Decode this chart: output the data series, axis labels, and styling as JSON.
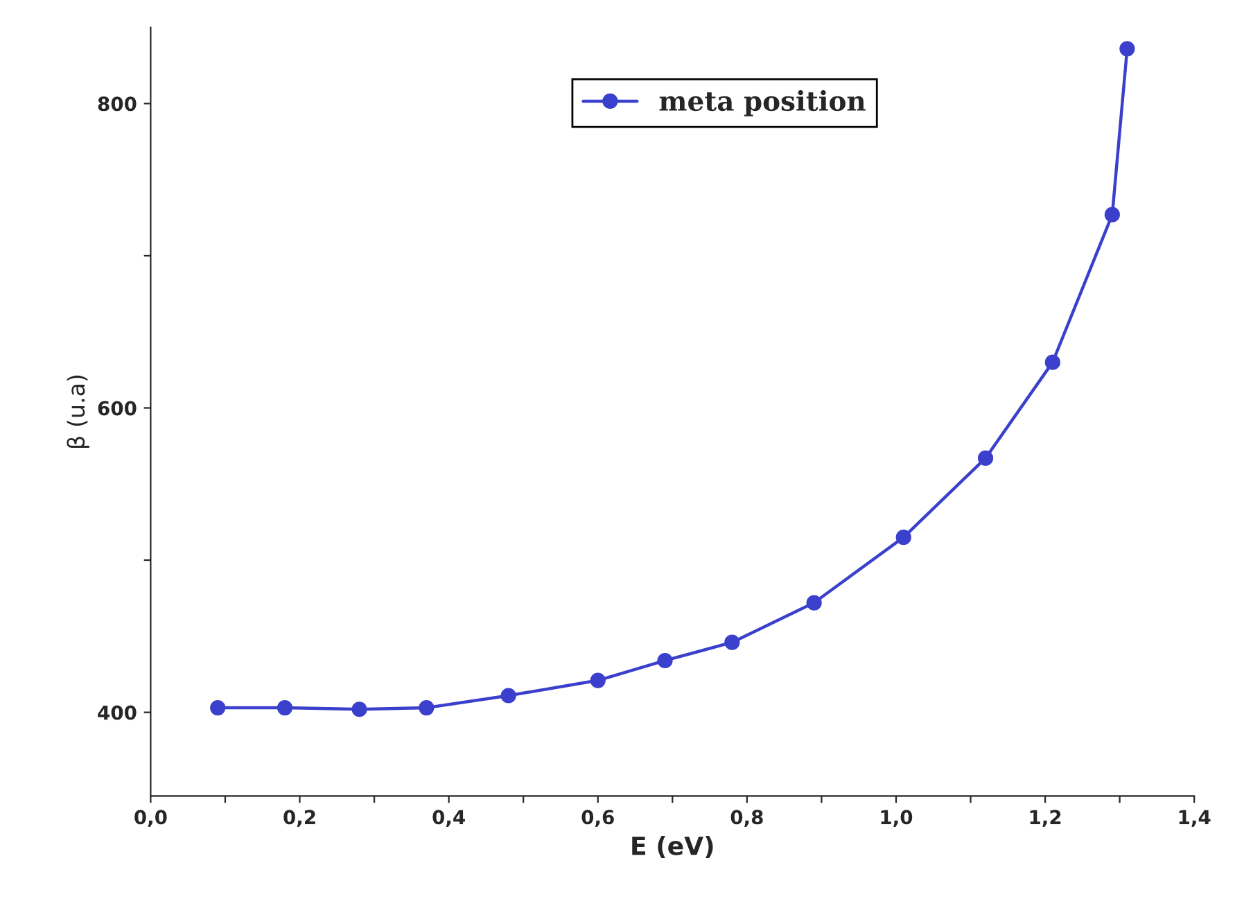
{
  "chart_data": {
    "type": "line",
    "xlabel": "E (eV)",
    "ylabel": "β (u.a)",
    "x": [
      0.09,
      0.18,
      0.28,
      0.37,
      0.48,
      0.6,
      0.69,
      0.78,
      0.89,
      1.01,
      1.12,
      1.21,
      1.29,
      1.31
    ],
    "series": [
      {
        "name": "meta position",
        "color": "#3b40cc",
        "values": [
          403,
          403,
          402,
          403,
          411,
          421,
          434,
          446,
          472,
          515,
          567,
          630,
          727,
          836
        ]
      }
    ],
    "xlim": [
      0,
      1.4
    ],
    "ylim": [
      345,
      850
    ],
    "xticks": [
      {
        "value": 0,
        "label": "0,0"
      },
      {
        "value": 0.1,
        "label": null
      },
      {
        "value": 0.2,
        "label": "0,2"
      },
      {
        "value": 0.3,
        "label": null
      },
      {
        "value": 0.4,
        "label": "0,4"
      },
      {
        "value": 0.5,
        "label": null
      },
      {
        "value": 0.6,
        "label": "0,6"
      },
      {
        "value": 0.7,
        "label": null
      },
      {
        "value": 0.8,
        "label": "0,8"
      },
      {
        "value": 0.9,
        "label": null
      },
      {
        "value": 1.0,
        "label": "1,0"
      },
      {
        "value": 1.1,
        "label": null
      },
      {
        "value": 1.2,
        "label": "1,2"
      },
      {
        "value": 1.3,
        "label": null
      },
      {
        "value": 1.4,
        "label": "1,4"
      }
    ],
    "yticks": [
      400,
      {
        "value": 500,
        "label": null
      },
      600,
      {
        "value": 700,
        "label": null
      },
      800
    ],
    "marker": "circle",
    "line_style": "solid",
    "legend": "top",
    "grid": false
  }
}
